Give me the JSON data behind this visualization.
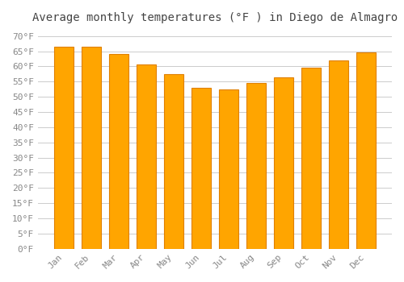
{
  "title": "Average monthly temperatures (°F ) in Diego de Almagro",
  "months": [
    "Jan",
    "Feb",
    "Mar",
    "Apr",
    "May",
    "Jun",
    "Jul",
    "Aug",
    "Sep",
    "Oct",
    "Nov",
    "Dec"
  ],
  "values": [
    66.5,
    66.5,
    64.0,
    60.5,
    57.5,
    53.0,
    52.5,
    54.5,
    56.5,
    59.5,
    62.0,
    64.5
  ],
  "bar_color": "#FFA500",
  "bar_edge_color": "#E08000",
  "background_color": "#FFFFFF",
  "grid_color": "#CCCCCC",
  "ytick_labels": [
    "0°F",
    "5°F",
    "10°F",
    "15°F",
    "20°F",
    "25°F",
    "30°F",
    "35°F",
    "40°F",
    "45°F",
    "50°F",
    "55°F",
    "60°F",
    "65°F",
    "70°F"
  ],
  "ytick_values": [
    0,
    5,
    10,
    15,
    20,
    25,
    30,
    35,
    40,
    45,
    50,
    55,
    60,
    65,
    70
  ],
  "ylim": [
    0,
    72
  ],
  "title_fontsize": 10,
  "tick_fontsize": 8,
  "font_family": "monospace"
}
